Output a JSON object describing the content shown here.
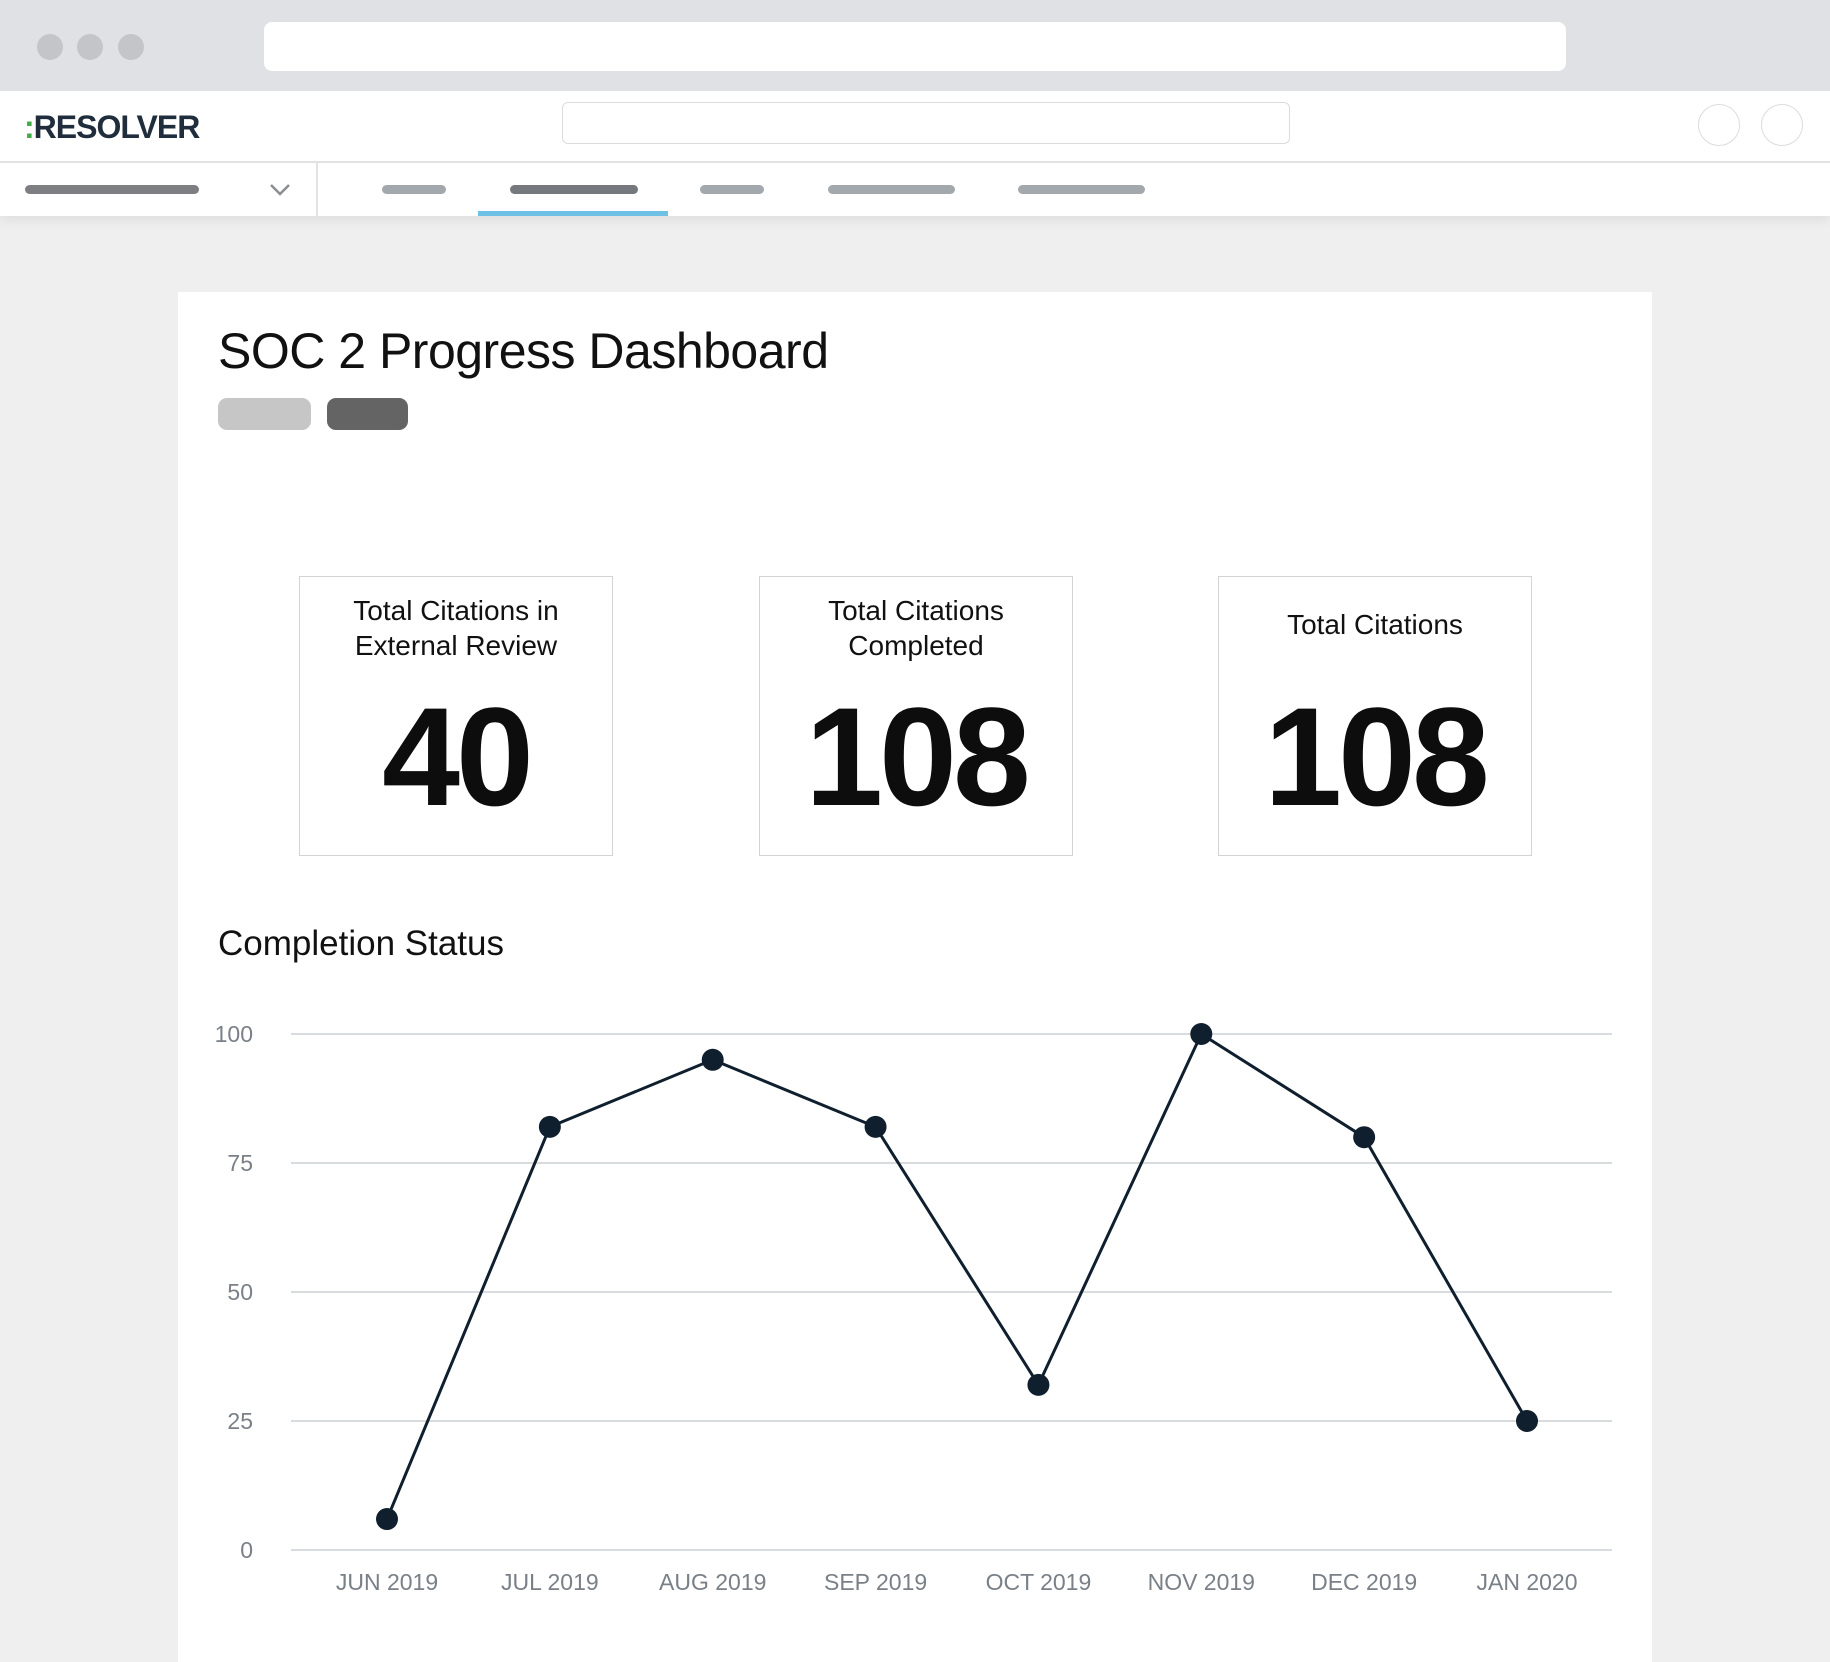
{
  "brand": {
    "logo_colon": ":",
    "logo_text": "RESOLVER"
  },
  "colors": {
    "accent_tab_underline": "#6ec1e4",
    "logo_colon": "#3fae49",
    "line_series": "#0f1f2e",
    "gridline": "#d9dcdf"
  },
  "icons": {
    "dropdown": "chevron-down-icon"
  },
  "page": {
    "title": "SOC 2 Progress Dashboard"
  },
  "metrics": [
    {
      "label": "Total Citations in External Review",
      "value": "40"
    },
    {
      "label": "Total Citations Completed",
      "value": "108"
    },
    {
      "label": "Total Citations",
      "value": "108"
    }
  ],
  "completion": {
    "title": "Completion Status"
  },
  "chart_data": {
    "type": "line",
    "title": "Completion Status",
    "categories": [
      "JUN 2019",
      "JUL 2019",
      "AUG 2019",
      "SEP 2019",
      "OCT 2019",
      "NOV 2019",
      "DEC 2019",
      "JAN 2020"
    ],
    "values": [
      6,
      82,
      95,
      82,
      32,
      100,
      80,
      25
    ],
    "ylim": [
      0,
      100
    ],
    "yticks": [
      "0",
      "25",
      "50",
      "75",
      "100"
    ],
    "grid": true,
    "legend": "none"
  }
}
